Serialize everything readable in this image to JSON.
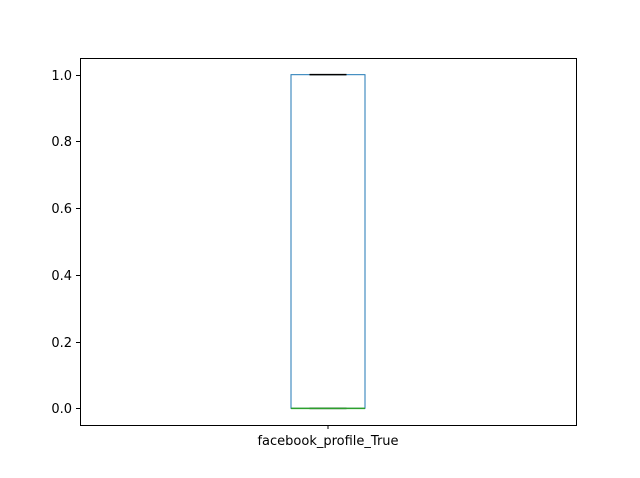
{
  "chart_data": {
    "type": "box",
    "categories": [
      "facebook_profile_True"
    ],
    "boxes": [
      {
        "category": "facebook_profile_True",
        "whislo": 0.0,
        "q1": 0.0,
        "median": 0.0,
        "q3": 1.0,
        "whishi": 1.0
      }
    ],
    "ylim": [
      -0.05,
      1.05
    ],
    "yticks": [
      0.0,
      0.2,
      0.4,
      0.6,
      0.8,
      1.0
    ],
    "ytick_labels": [
      "0.0",
      "0.2",
      "0.4",
      "0.6",
      "0.8",
      "1.0"
    ],
    "title": "",
    "xlabel": "",
    "ylabel": "",
    "grid": false,
    "colors": {
      "box": "#1f77b4",
      "median": "#2ca02c",
      "whisker_cap": "#000000",
      "axes": "#000000"
    }
  }
}
